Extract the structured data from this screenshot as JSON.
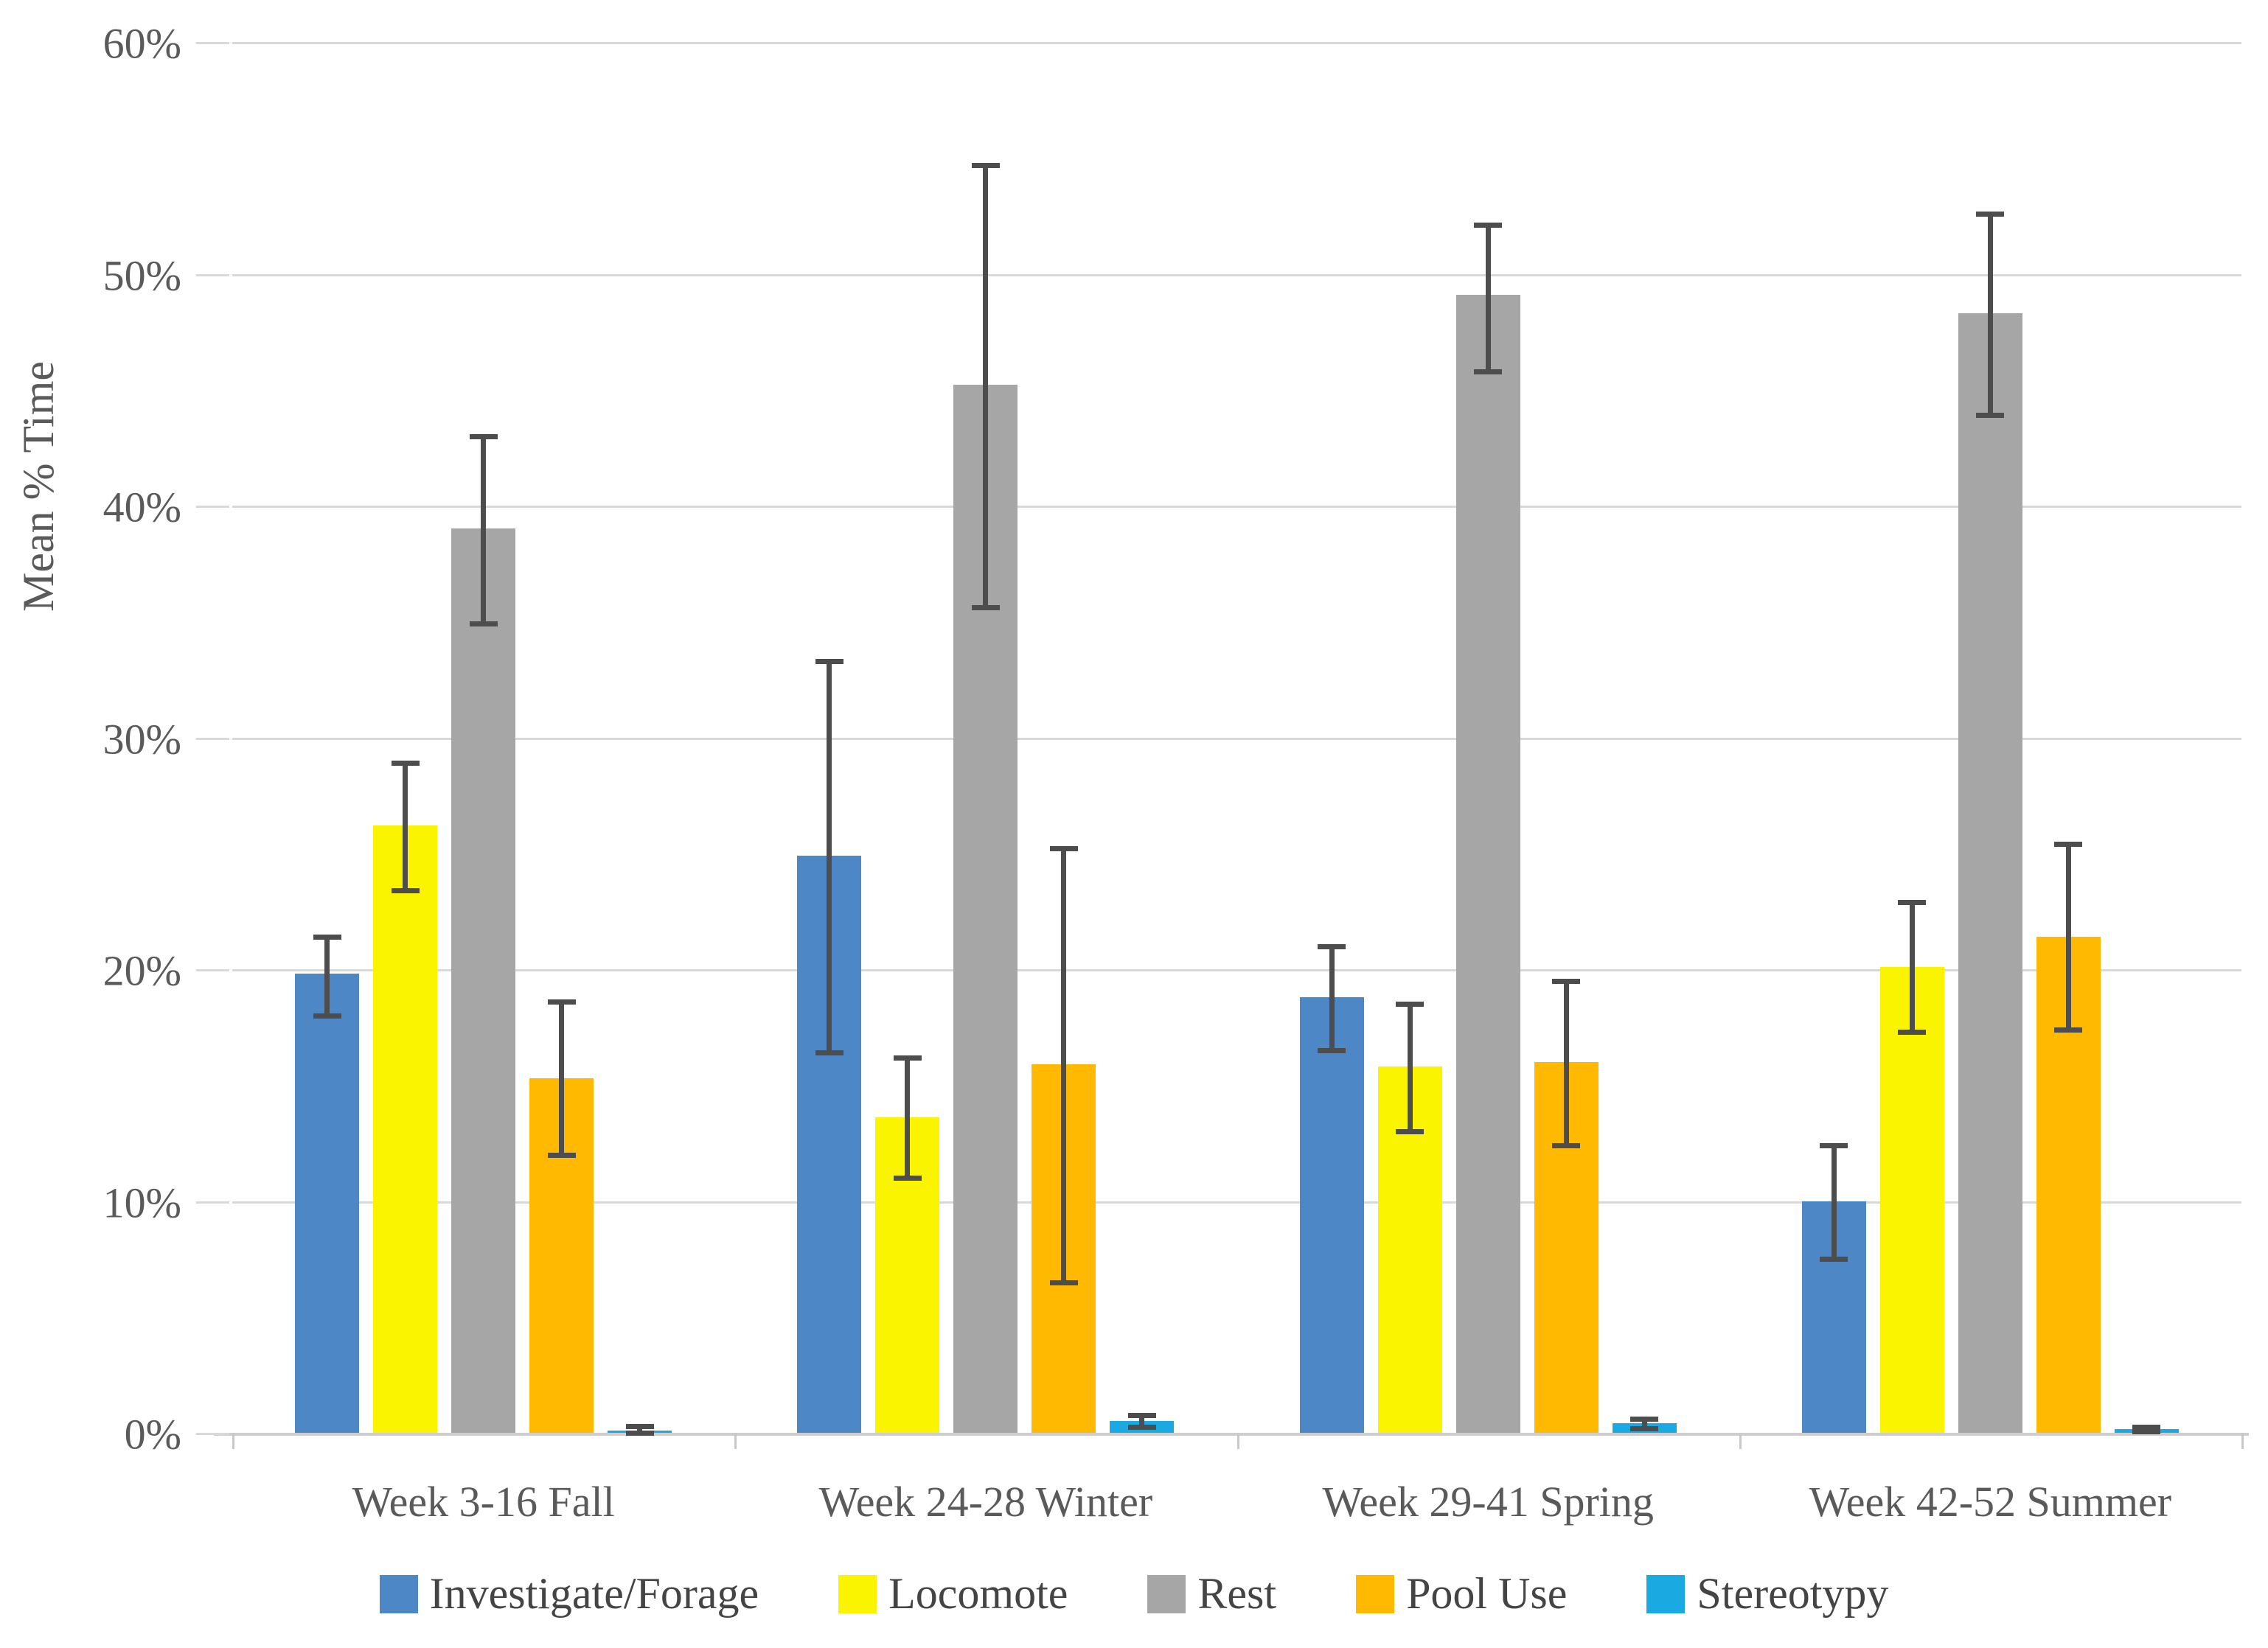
{
  "chart_data": {
    "type": "bar",
    "title": "",
    "xlabel": "",
    "ylabel": "Mean % Time",
    "ylim": [
      0,
      60
    ],
    "ytick_step": 10,
    "ytick_labels": [
      "0%",
      "10%",
      "20%",
      "30%",
      "40%",
      "50%",
      "60%"
    ],
    "grid": true,
    "legend_position": "bottom",
    "error_bars": true,
    "categories": [
      "Week 3-16 Fall",
      "Week 24-28 Winter",
      "Week 29-41 Spring",
      "Week 42-52 Summer"
    ],
    "series": [
      {
        "name": "Investigate/Forage",
        "color": "#4e87c6",
        "values": [
          19.8,
          24.9,
          18.8,
          10.0
        ],
        "err_plus": [
          1.6,
          8.4,
          2.2,
          2.4
        ],
        "err_minus": [
          1.8,
          8.5,
          2.3,
          2.5
        ]
      },
      {
        "name": "Locomote",
        "color": "#faf400",
        "values": [
          26.2,
          13.6,
          15.8,
          20.1
        ],
        "err_plus": [
          2.7,
          2.6,
          2.7,
          2.8
        ],
        "err_minus": [
          2.8,
          2.6,
          2.8,
          2.8
        ]
      },
      {
        "name": "Rest",
        "color": "#a6a6a6",
        "values": [
          39.0,
          45.2,
          49.1,
          48.3
        ],
        "err_plus": [
          4.0,
          9.5,
          3.0,
          4.3
        ],
        "err_minus": [
          4.1,
          9.6,
          3.3,
          4.4
        ]
      },
      {
        "name": "Pool Use",
        "color": "#ffb900",
        "values": [
          15.3,
          15.9,
          16.0,
          21.4
        ],
        "err_plus": [
          3.3,
          9.3,
          3.5,
          4.0
        ],
        "err_minus": [
          3.3,
          9.4,
          3.6,
          4.0
        ]
      },
      {
        "name": "Stereotypy",
        "color": "#1ba9e1",
        "values": [
          0.1,
          0.5,
          0.4,
          0.15
        ],
        "err_plus": [
          0.2,
          0.25,
          0.2,
          0.1
        ],
        "err_minus": [
          0.1,
          0.25,
          0.2,
          0.1
        ]
      }
    ]
  }
}
